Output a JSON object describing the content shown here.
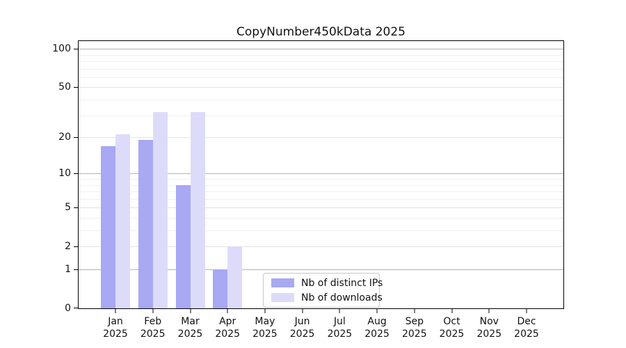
{
  "title": "CopyNumber450kData 2025",
  "chart_data": {
    "type": "bar",
    "title": "CopyNumber450kData 2025",
    "scale": "log1p",
    "grid": true,
    "legend_position": "inside-bottom-center",
    "categories": [
      {
        "month": "Jan",
        "year": "2025"
      },
      {
        "month": "Feb",
        "year": "2025"
      },
      {
        "month": "Mar",
        "year": "2025"
      },
      {
        "month": "Apr",
        "year": "2025"
      },
      {
        "month": "May",
        "year": "2025"
      },
      {
        "month": "Jun",
        "year": "2025"
      },
      {
        "month": "Jul",
        "year": "2025"
      },
      {
        "month": "Aug",
        "year": "2025"
      },
      {
        "month": "Sep",
        "year": "2025"
      },
      {
        "month": "Oct",
        "year": "2025"
      },
      {
        "month": "Nov",
        "year": "2025"
      },
      {
        "month": "Dec",
        "year": "2025"
      }
    ],
    "series": [
      {
        "name": "Nb of distinct IPs",
        "color": "#a8a8f3",
        "values": [
          17,
          19,
          8,
          1,
          0,
          0,
          0,
          0,
          0,
          0,
          0,
          0
        ]
      },
      {
        "name": "Nb of downloads",
        "color": "#dcdcfa",
        "values": [
          21,
          32,
          32,
          2,
          0,
          0,
          0,
          0,
          0,
          0,
          0,
          0
        ]
      }
    ],
    "y_ticks": [
      0,
      1,
      2,
      5,
      10,
      20,
      50,
      100
    ],
    "y_minor_gridlines": [
      3,
      4,
      6,
      7,
      8,
      9,
      30,
      40,
      60,
      70,
      80,
      90
    ],
    "ylim": [
      0,
      115
    ],
    "xlabel": "",
    "ylabel": ""
  },
  "colors": {
    "bar_distinct_ips": "#a8a8f3",
    "bar_downloads": "#dcdcfa",
    "grid_decade": "#b4b4b4",
    "grid_major": "#e2e2e2",
    "grid_minor": "#f0f0f0",
    "spine": "#000000"
  }
}
